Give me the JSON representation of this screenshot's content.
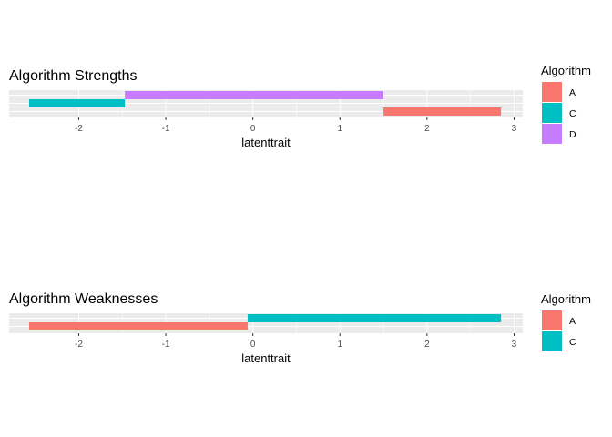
{
  "chart_data": [
    {
      "type": "bar",
      "orientation": "horizontal",
      "title": "Algorithm Strengths",
      "xlabel": "latenttrait",
      "ylabel": "",
      "xlim": [
        -2.8,
        3.1
      ],
      "x_ticks": [
        -2,
        -1,
        0,
        1,
        2,
        3
      ],
      "x_tick_labels": [
        "-2",
        "-1",
        "0",
        "1",
        "2",
        "3"
      ],
      "grid": true,
      "legend_position": "right",
      "legend_title": "Algorithm",
      "legend": [
        {
          "label": "A",
          "color": "#F8766D"
        },
        {
          "label": "C",
          "color": "#00BFC4"
        },
        {
          "label": "D",
          "color": "#C77CFF"
        }
      ],
      "bars": [
        {
          "algorithm": "D",
          "start": -1.47,
          "end": 1.5,
          "color": "#C77CFF"
        },
        {
          "algorithm": "C",
          "start": -2.57,
          "end": -1.47,
          "color": "#00BFC4"
        },
        {
          "algorithm": "A",
          "start": 1.5,
          "end": 2.85,
          "color": "#F8766D"
        }
      ]
    },
    {
      "type": "bar",
      "orientation": "horizontal",
      "title": "Algorithm Weaknesses",
      "xlabel": "latenttrait",
      "ylabel": "",
      "xlim": [
        -2.8,
        3.1
      ],
      "x_ticks": [
        -2,
        -1,
        0,
        1,
        2,
        3
      ],
      "x_tick_labels": [
        "-2",
        "-1",
        "0",
        "1",
        "2",
        "3"
      ],
      "grid": true,
      "legend_position": "right",
      "legend_title": "Algorithm",
      "legend": [
        {
          "label": "A",
          "color": "#F8766D"
        },
        {
          "label": "C",
          "color": "#00BFC4"
        }
      ],
      "bars": [
        {
          "algorithm": "C",
          "start": -0.06,
          "end": 2.85,
          "color": "#00BFC4"
        },
        {
          "algorithm": "A",
          "start": -2.57,
          "end": -0.06,
          "color": "#F8766D"
        }
      ]
    }
  ]
}
